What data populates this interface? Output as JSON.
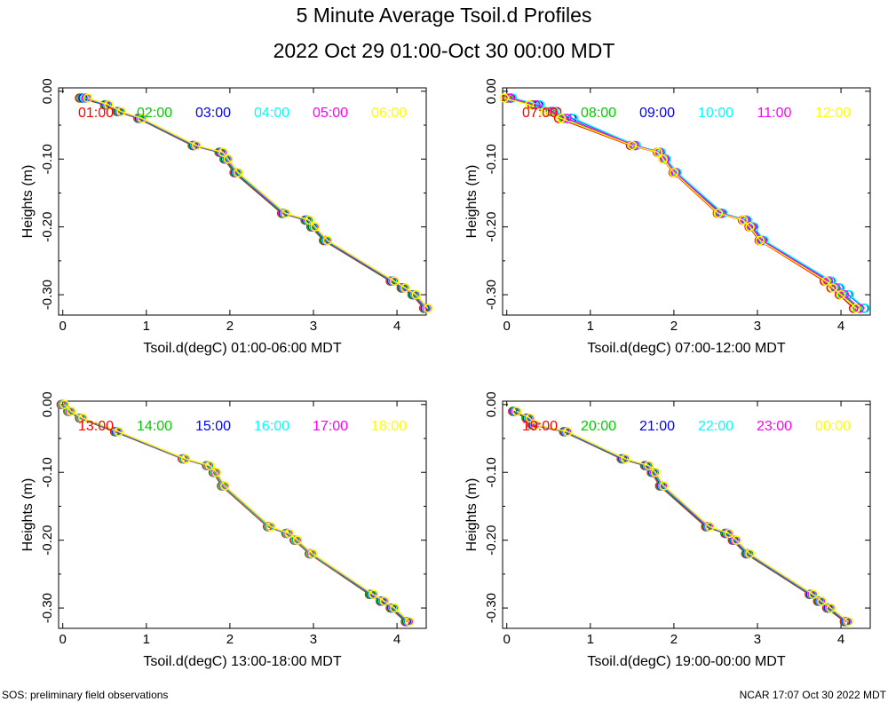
{
  "header": {
    "title": "5 Minute Average Tsoil.d Profiles",
    "subtitle": "2022 Oct 29 01:00-Oct 30 00:00 MDT"
  },
  "footer": {
    "left": "SOS: preliminary field observations",
    "right": "NCAR 17:07 Oct 30 2022 MDT"
  },
  "colors": [
    "#ff0000",
    "#00cc00",
    "#0000ff",
    "#00ffff",
    "#ff00ff",
    "#ffff00"
  ],
  "chart_data": [
    {
      "type": "line",
      "xlabel": "Tsoil.d(degC) 01:00-06:00 MDT",
      "ylabel": "Heights (m)",
      "xlim": [
        -0.05,
        4.35
      ],
      "ylim": [
        -0.33,
        0.005
      ],
      "xticks": [
        "0",
        "1",
        "2",
        "3",
        "4"
      ],
      "yticks": [
        "0.00",
        "-0.10",
        "-0.20",
        "-0.30"
      ],
      "heights": [
        -0.01,
        -0.02,
        -0.03,
        -0.04,
        -0.08,
        -0.09,
        -0.1,
        -0.12,
        -0.18,
        -0.19,
        -0.2,
        -0.22,
        -0.28,
        -0.29,
        -0.3,
        -0.32
      ],
      "series": [
        {
          "name": "01:00",
          "values": [
            0.2,
            0.5,
            0.65,
            0.9,
            1.55,
            1.87,
            1.93,
            2.05,
            2.62,
            2.9,
            2.97,
            3.12,
            3.92,
            4.05,
            4.18,
            4.32
          ]
        },
        {
          "name": "02:00",
          "values": [
            0.22,
            0.51,
            0.66,
            0.91,
            1.56,
            1.88,
            1.94,
            2.06,
            2.63,
            2.91,
            2.98,
            3.13,
            3.93,
            4.06,
            4.19,
            4.33
          ]
        },
        {
          "name": "03:00",
          "values": [
            0.24,
            0.52,
            0.67,
            0.92,
            1.57,
            1.89,
            1.95,
            2.07,
            2.64,
            2.92,
            2.99,
            3.14,
            3.94,
            4.07,
            4.2,
            4.34
          ]
        },
        {
          "name": "04:00",
          "values": [
            0.26,
            0.53,
            0.68,
            0.93,
            1.58,
            1.9,
            1.96,
            2.08,
            2.65,
            2.93,
            3.0,
            3.15,
            3.95,
            4.08,
            4.21,
            4.35
          ]
        },
        {
          "name": "05:00",
          "values": [
            0.28,
            0.54,
            0.69,
            0.94,
            1.59,
            1.91,
            1.97,
            2.09,
            2.66,
            2.94,
            3.01,
            3.16,
            3.96,
            4.09,
            4.22,
            4.36
          ]
        },
        {
          "name": "06:00",
          "values": [
            0.3,
            0.55,
            0.7,
            0.95,
            1.6,
            1.92,
            1.98,
            2.1,
            2.67,
            2.95,
            3.02,
            3.17,
            3.97,
            4.1,
            4.23,
            4.37
          ]
        }
      ]
    },
    {
      "type": "line",
      "xlabel": "Tsoil.d(degC) 07:00-12:00 MDT",
      "ylabel": "Heights (m)",
      "xlim": [
        -0.05,
        4.35
      ],
      "ylim": [
        -0.33,
        0.005
      ],
      "xticks": [
        "0",
        "1",
        "2",
        "3",
        "4"
      ],
      "yticks": [
        "0.00",
        "-0.10",
        "-0.20",
        "-0.30"
      ],
      "heights": [
        -0.01,
        -0.02,
        -0.03,
        -0.04,
        -0.08,
        -0.09,
        -0.1,
        -0.12,
        -0.18,
        -0.19,
        -0.2,
        -0.22,
        -0.28,
        -0.29,
        -0.3,
        -0.32
      ],
      "series": [
        {
          "name": "07:00",
          "values": [
            0.0,
            0.3,
            0.6,
            0.62,
            1.48,
            1.8,
            1.87,
            1.99,
            2.52,
            2.82,
            2.9,
            3.02,
            3.8,
            3.88,
            3.98,
            4.15
          ]
        },
        {
          "name": "08:00",
          "values": [
            0.02,
            0.33,
            0.52,
            0.68,
            1.52,
            1.82,
            1.88,
            2.01,
            2.55,
            2.84,
            2.92,
            3.04,
            3.84,
            3.93,
            4.02,
            4.2
          ]
        },
        {
          "name": "09:00",
          "values": [
            0.05,
            0.38,
            0.55,
            0.78,
            1.55,
            1.84,
            1.9,
            2.03,
            2.58,
            2.87,
            2.95,
            3.07,
            3.88,
            3.98,
            4.09,
            4.28
          ]
        },
        {
          "name": "10:00",
          "values": [
            0.07,
            0.4,
            0.57,
            0.8,
            1.55,
            1.85,
            1.91,
            2.04,
            2.59,
            2.88,
            2.96,
            3.08,
            3.89,
            3.99,
            4.1,
            4.29
          ]
        },
        {
          "name": "11:00",
          "values": [
            0.04,
            0.35,
            0.55,
            0.72,
            1.53,
            1.83,
            1.89,
            2.02,
            2.56,
            2.85,
            2.93,
            3.05,
            3.85,
            3.94,
            4.04,
            4.22
          ]
        },
        {
          "name": "12:00",
          "values": [
            -0.03,
            0.27,
            0.45,
            0.65,
            1.5,
            1.81,
            1.87,
            2.0,
            2.53,
            2.83,
            2.91,
            3.03,
            3.82,
            3.9,
            4.0,
            4.18
          ]
        }
      ]
    },
    {
      "type": "line",
      "xlabel": "Tsoil.d(degC) 13:00-18:00 MDT",
      "ylabel": "Heights (m)",
      "xlim": [
        -0.05,
        4.35
      ],
      "ylim": [
        -0.33,
        0.005
      ],
      "xticks": [
        "0",
        "1",
        "2",
        "3",
        "4"
      ],
      "yticks": [
        "0.00",
        "-0.10",
        "-0.20",
        "-0.30"
      ],
      "heights": [
        -0.0,
        -0.01,
        -0.02,
        -0.04,
        -0.08,
        -0.09,
        -0.1,
        -0.12,
        -0.18,
        -0.19,
        -0.2,
        -0.22,
        -0.28,
        -0.29,
        -0.3,
        -0.32
      ],
      "series": [
        {
          "name": "13:00",
          "values": [
            -0.02,
            0.06,
            0.2,
            0.62,
            1.43,
            1.72,
            1.8,
            1.9,
            2.45,
            2.67,
            2.77,
            2.95,
            3.67,
            3.8,
            3.92,
            4.1
          ]
        },
        {
          "name": "14:00",
          "values": [
            -0.01,
            0.07,
            0.21,
            0.63,
            1.44,
            1.73,
            1.81,
            1.91,
            2.46,
            2.68,
            2.78,
            2.96,
            3.68,
            3.81,
            3.93,
            4.11
          ]
        },
        {
          "name": "15:00",
          "values": [
            0.0,
            0.08,
            0.22,
            0.64,
            1.45,
            1.74,
            1.82,
            1.92,
            2.47,
            2.69,
            2.79,
            2.97,
            3.69,
            3.82,
            3.94,
            4.12
          ]
        },
        {
          "name": "16:00",
          "values": [
            0.0,
            0.08,
            0.22,
            0.65,
            1.45,
            1.74,
            1.82,
            1.92,
            2.47,
            2.69,
            2.79,
            2.97,
            3.7,
            3.83,
            3.95,
            4.13
          ]
        },
        {
          "name": "17:00",
          "values": [
            0.01,
            0.09,
            0.23,
            0.66,
            1.46,
            1.75,
            1.83,
            1.93,
            2.48,
            2.7,
            2.8,
            2.98,
            3.71,
            3.84,
            3.96,
            4.14
          ]
        },
        {
          "name": "18:00",
          "values": [
            0.02,
            0.1,
            0.24,
            0.67,
            1.47,
            1.76,
            1.84,
            1.94,
            2.49,
            2.71,
            2.81,
            2.99,
            3.72,
            3.85,
            3.97,
            4.15
          ]
        }
      ]
    },
    {
      "type": "line",
      "xlabel": "Tsoil.d(degC) 19:00-00:00 MDT",
      "ylabel": "Heights (m)",
      "xlim": [
        -0.05,
        4.35
      ],
      "ylim": [
        -0.33,
        0.005
      ],
      "xticks": [
        "0",
        "1",
        "2",
        "3",
        "4"
      ],
      "yticks": [
        "0.00",
        "-0.10",
        "-0.20",
        "-0.30"
      ],
      "heights": [
        -0.01,
        -0.02,
        -0.03,
        -0.04,
        -0.08,
        -0.09,
        -0.1,
        -0.12,
        -0.18,
        -0.19,
        -0.2,
        -0.22,
        -0.28,
        -0.29,
        -0.3,
        -0.32
      ],
      "series": [
        {
          "name": "19:00",
          "values": [
            0.07,
            0.23,
            0.3,
            0.68,
            1.37,
            1.65,
            1.73,
            1.83,
            2.38,
            2.61,
            2.7,
            2.86,
            3.62,
            3.72,
            3.83,
            4.04
          ]
        },
        {
          "name": "20:00",
          "values": [
            0.08,
            0.24,
            0.31,
            0.69,
            1.38,
            1.66,
            1.74,
            1.84,
            2.39,
            2.62,
            2.71,
            2.87,
            3.63,
            3.73,
            3.84,
            4.05
          ]
        },
        {
          "name": "21:00",
          "values": [
            0.09,
            0.25,
            0.32,
            0.7,
            1.39,
            1.67,
            1.75,
            1.85,
            2.4,
            2.63,
            2.72,
            2.88,
            3.64,
            3.74,
            3.85,
            4.06
          ]
        },
        {
          "name": "22:00",
          "values": [
            0.1,
            0.26,
            0.33,
            0.71,
            1.4,
            1.68,
            1.76,
            1.86,
            2.41,
            2.64,
            2.73,
            2.89,
            3.65,
            3.75,
            3.86,
            4.07
          ]
        },
        {
          "name": "23:00",
          "values": [
            0.11,
            0.27,
            0.34,
            0.72,
            1.41,
            1.69,
            1.77,
            1.87,
            2.42,
            2.65,
            2.74,
            2.9,
            3.66,
            3.76,
            3.87,
            4.08
          ]
        },
        {
          "name": "00:00",
          "values": [
            0.12,
            0.28,
            0.35,
            0.73,
            1.42,
            1.7,
            1.78,
            1.88,
            2.43,
            2.66,
            2.75,
            2.91,
            3.67,
            3.77,
            3.88,
            4.09
          ]
        }
      ]
    }
  ]
}
